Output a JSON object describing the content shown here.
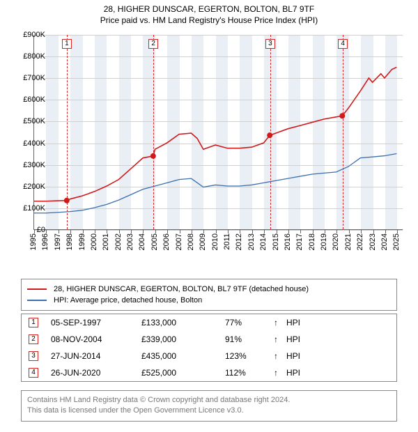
{
  "title_line1": "28, HIGHER DUNSCAR, EGERTON, BOLTON, BL7 9TF",
  "title_line2": "Price paid vs. HM Land Registry's House Price Index (HPI)",
  "chart": {
    "type": "line",
    "background_color": "#ffffff",
    "band_color": "#eaeef5",
    "grid_color": "#d0d0d0",
    "axis_color": "#666666",
    "x_min": 1995,
    "x_max": 2025.5,
    "y_min": 0,
    "y_max": 900,
    "y_ticks": [
      0,
      100,
      200,
      300,
      400,
      500,
      600,
      700,
      800,
      900
    ],
    "y_tick_labels": [
      "£0",
      "£100K",
      "£200K",
      "£300K",
      "£400K",
      "£500K",
      "£600K",
      "£700K",
      "£800K",
      "£900K"
    ],
    "x_ticks": [
      1995,
      1996,
      1997,
      1998,
      1999,
      2000,
      2001,
      2002,
      2003,
      2004,
      2005,
      2006,
      2007,
      2008,
      2009,
      2010,
      2011,
      2012,
      2013,
      2014,
      2015,
      2016,
      2017,
      2018,
      2019,
      2020,
      2021,
      2022,
      2023,
      2024,
      2025
    ],
    "series": [
      {
        "name": "price_paid",
        "color": "#d11919",
        "width": 1.6,
        "data": [
          [
            1995,
            130
          ],
          [
            1996,
            130
          ],
          [
            1997,
            132
          ],
          [
            1997.7,
            133
          ],
          [
            1998,
            140
          ],
          [
            1999,
            155
          ],
          [
            2000,
            175
          ],
          [
            2001,
            200
          ],
          [
            2002,
            230
          ],
          [
            2003,
            280
          ],
          [
            2004,
            330
          ],
          [
            2004.85,
            339
          ],
          [
            2005,
            370
          ],
          [
            2006,
            400
          ],
          [
            2007,
            440
          ],
          [
            2008,
            445
          ],
          [
            2008.5,
            420
          ],
          [
            2009,
            370
          ],
          [
            2010,
            390
          ],
          [
            2011,
            375
          ],
          [
            2012,
            375
          ],
          [
            2013,
            380
          ],
          [
            2014,
            400
          ],
          [
            2014.5,
            435
          ],
          [
            2015,
            445
          ],
          [
            2016,
            465
          ],
          [
            2017,
            480
          ],
          [
            2018,
            495
          ],
          [
            2019,
            510
          ],
          [
            2020,
            520
          ],
          [
            2020.5,
            525
          ],
          [
            2021,
            560
          ],
          [
            2022,
            640
          ],
          [
            2022.7,
            700
          ],
          [
            2023,
            680
          ],
          [
            2023.7,
            720
          ],
          [
            2024,
            700
          ],
          [
            2024.6,
            740
          ],
          [
            2025,
            750
          ]
        ]
      },
      {
        "name": "hpi",
        "color": "#3a6fb0",
        "width": 1.3,
        "data": [
          [
            1995,
            75
          ],
          [
            1996,
            75
          ],
          [
            1997,
            78
          ],
          [
            1998,
            82
          ],
          [
            1999,
            88
          ],
          [
            2000,
            100
          ],
          [
            2001,
            115
          ],
          [
            2002,
            135
          ],
          [
            2003,
            160
          ],
          [
            2004,
            185
          ],
          [
            2005,
            200
          ],
          [
            2006,
            215
          ],
          [
            2007,
            230
          ],
          [
            2008,
            235
          ],
          [
            2008.5,
            215
          ],
          [
            2009,
            195
          ],
          [
            2010,
            205
          ],
          [
            2011,
            200
          ],
          [
            2012,
            200
          ],
          [
            2013,
            205
          ],
          [
            2014,
            215
          ],
          [
            2015,
            225
          ],
          [
            2016,
            235
          ],
          [
            2017,
            245
          ],
          [
            2018,
            255
          ],
          [
            2019,
            260
          ],
          [
            2020,
            265
          ],
          [
            2021,
            290
          ],
          [
            2022,
            330
          ],
          [
            2023,
            335
          ],
          [
            2024,
            340
          ],
          [
            2025,
            350
          ]
        ]
      }
    ],
    "event_markers": [
      {
        "n": "1",
        "x": 1997.7,
        "y": 133
      },
      {
        "n": "2",
        "x": 2004.85,
        "y": 339
      },
      {
        "n": "3",
        "x": 2014.5,
        "y": 435
      },
      {
        "n": "4",
        "x": 2020.5,
        "y": 525
      }
    ],
    "event_line_color": "#d22222"
  },
  "legend": {
    "items": [
      {
        "color": "#d11919",
        "label": "28, HIGHER DUNSCAR, EGERTON, BOLTON, BL7 9TF (detached house)"
      },
      {
        "color": "#3a6fb0",
        "label": "HPI: Average price, detached house, Bolton"
      }
    ]
  },
  "events": [
    {
      "n": "1",
      "date": "05-SEP-1997",
      "price": "£133,000",
      "pct": "77%",
      "arrow": "↑",
      "tag": "HPI"
    },
    {
      "n": "2",
      "date": "08-NOV-2004",
      "price": "£339,000",
      "pct": "91%",
      "arrow": "↑",
      "tag": "HPI"
    },
    {
      "n": "3",
      "date": "27-JUN-2014",
      "price": "£435,000",
      "pct": "123%",
      "arrow": "↑",
      "tag": "HPI"
    },
    {
      "n": "4",
      "date": "26-JUN-2020",
      "price": "£525,000",
      "pct": "112%",
      "arrow": "↑",
      "tag": "HPI"
    }
  ],
  "footer_line1": "Contains HM Land Registry data © Crown copyright and database right 2024.",
  "footer_line2": "This data is licensed under the Open Government Licence v3.0."
}
